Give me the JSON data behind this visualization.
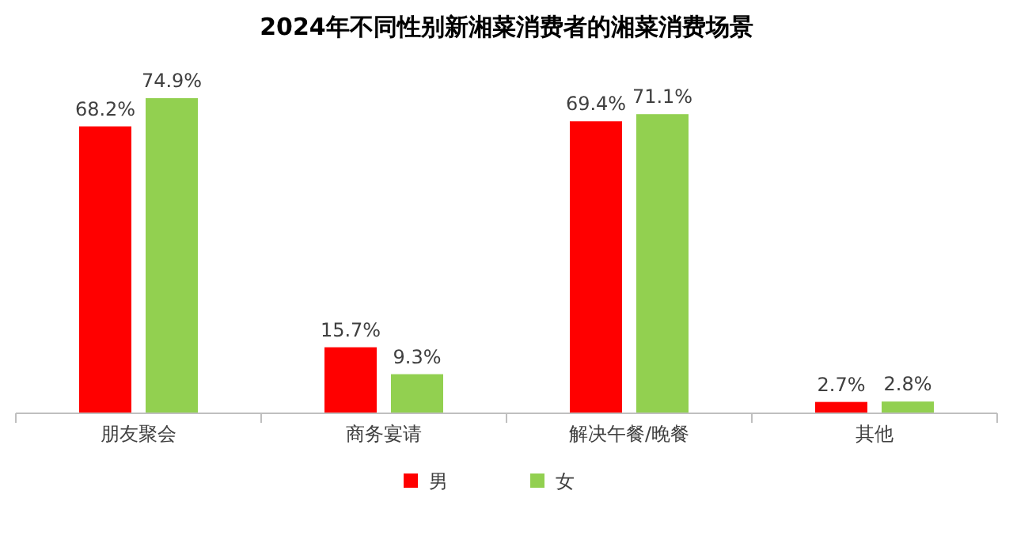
{
  "chart_data": {
    "type": "bar",
    "title": "2024年不同性别新湘菜消费者的湘菜消费场景",
    "categories": [
      "朋友聚会",
      "商务宴请",
      "解决午餐/晚餐",
      "其他"
    ],
    "series": [
      {
        "name": "男",
        "color": "#ff0000",
        "values": [
          68.2,
          15.7,
          69.4,
          2.7
        ],
        "value_labels": [
          "68.2%",
          "15.7%",
          "69.4%",
          "2.7%"
        ]
      },
      {
        "name": "女",
        "color": "#92d050",
        "values": [
          74.9,
          9.3,
          71.1,
          2.8
        ],
        "value_labels": [
          "74.9%",
          "9.3%",
          "71.1%",
          "2.8%"
        ]
      }
    ],
    "legend": "bottom"
  }
}
